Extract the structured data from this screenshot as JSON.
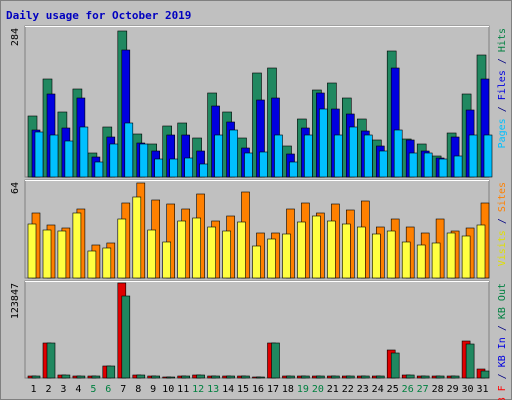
{
  "chart_data": {
    "type": "bar",
    "title": "Daily usage for October 2019",
    "categories": [
      "1",
      "2",
      "3",
      "4",
      "5",
      "6",
      "7",
      "8",
      "9",
      "10",
      "11",
      "12",
      "13",
      "14",
      "15",
      "16",
      "17",
      "18",
      "19",
      "20",
      "21",
      "22",
      "23",
      "24",
      "25",
      "26",
      "27",
      "28",
      "29",
      "30",
      "31"
    ],
    "weekend_days": [
      "5",
      "6",
      "12",
      "13",
      "19",
      "20",
      "26",
      "27"
    ],
    "panels": [
      {
        "id": "pages-files-hits",
        "ymax_label": "284",
        "ylim": [
          0,
          284
        ],
        "axis_label": [
          {
            "text": "Pages",
            "color": "#00c0ff"
          },
          {
            "text": " / ",
            "color": "#000080"
          },
          {
            "text": "Files",
            "color": "#0000e0"
          },
          {
            "text": " / ",
            "color": "#000080"
          },
          {
            "text": "Hits",
            "color": "#008040"
          }
        ],
        "series": [
          {
            "name": "Hits",
            "color": "#208860",
            "values": [
              116,
              186,
              123,
              167,
              46,
              96,
              279,
              82,
              62,
              98,
              102,
              75,
              160,
              123,
              74,
              198,
              208,
              59,
              110,
              165,
              180,
              150,
              110,
              71,
              240,
              73,
              62,
              40,
              83,
              158,
              232
            ]
          },
          {
            "name": "Files",
            "color": "#0000e0",
            "values": [
              90,
              159,
              94,
              150,
              38,
              76,
              242,
              65,
              50,
              80,
              80,
              50,
              135,
              105,
              56,
              147,
              150,
              44,
              93,
              160,
              129,
              121,
              88,
              59,
              208,
              70,
              50,
              37,
              76,
              128,
              186
            ]
          },
          {
            "name": "Pages",
            "color": "#00c0ff",
            "values": [
              85,
              80,
              68,
              95,
              28,
              63,
              103,
              63,
              34,
              35,
              37,
              25,
              80,
              90,
              45,
              48,
              80,
              28,
              80,
              130,
              80,
              95,
              80,
              50,
              90,
              45,
              45,
              35,
              40,
              80,
              80
            ]
          }
        ]
      },
      {
        "id": "visits-sites",
        "ymax_label": "64",
        "ylim": [
          0,
          64
        ],
        "axis_label": [
          {
            "text": "Visits",
            "color": "#e0e000"
          },
          {
            "text": " / ",
            "color": "#000080"
          },
          {
            "text": "Sites",
            "color": "#ff8000"
          }
        ],
        "series": [
          {
            "name": "Sites",
            "color": "#ff8000",
            "values": [
              43,
              35,
              33,
              46,
              22,
              23,
              50,
              63,
              52,
              49,
              46,
              56,
              38,
              41,
              57,
              30,
              30,
              46,
              50,
              43,
              49,
              45,
              51,
              34,
              39,
              34,
              30,
              39,
              31,
              33,
              50
            ]
          },
          {
            "name": "Visits",
            "color": "#ffff40",
            "values": [
              36,
              32,
              31,
              43,
              18,
              20,
              39,
              54,
              32,
              24,
              38,
              40,
              34,
              31,
              37,
              21,
              26,
              29,
              37,
              41,
              38,
              36,
              34,
              29,
              31,
              24,
              22,
              23,
              30,
              28,
              35
            ]
          }
        ]
      },
      {
        "id": "kb-in-out",
        "ymax_label": "123847",
        "ylim": [
          0,
          123847
        ],
        "axis_label": [
          {
            "text": "KB F",
            "color": "#ff0000"
          },
          {
            "text": " / ",
            "color": "#000080"
          },
          {
            "text": "KB In",
            "color": "#0000e0"
          },
          {
            "text": " / ",
            "color": "#000080"
          },
          {
            "text": "KB Out",
            "color": "#008040"
          }
        ],
        "series": [
          {
            "name": "KB F",
            "color": "#e00000",
            "values": [
              3000,
              46000,
              4000,
              3000,
              2000,
              15000,
              123847,
              4000,
              2000,
              1000,
              2000,
              4000,
              3000,
              2000,
              2000,
              1500,
              46000,
              2500,
              2000,
              2500,
              2500,
              2500,
              2500,
              2500,
              36000,
              3500,
              3000,
              3000,
              3000,
              48000,
              12000
            ]
          },
          {
            "name": "KB Out",
            "color": "#208860",
            "values": [
              3000,
              45000,
              3500,
              3000,
              2000,
              15000,
              107000,
              3500,
              2000,
              1000,
              2000,
              4000,
              3000,
              2000,
              2000,
              1500,
              45000,
              2000,
              2000,
              2000,
              2000,
              2000,
              2000,
              2000,
              33000,
              3500,
              3000,
              3000,
              3000,
              44000,
              9000
            ]
          }
        ]
      }
    ]
  }
}
